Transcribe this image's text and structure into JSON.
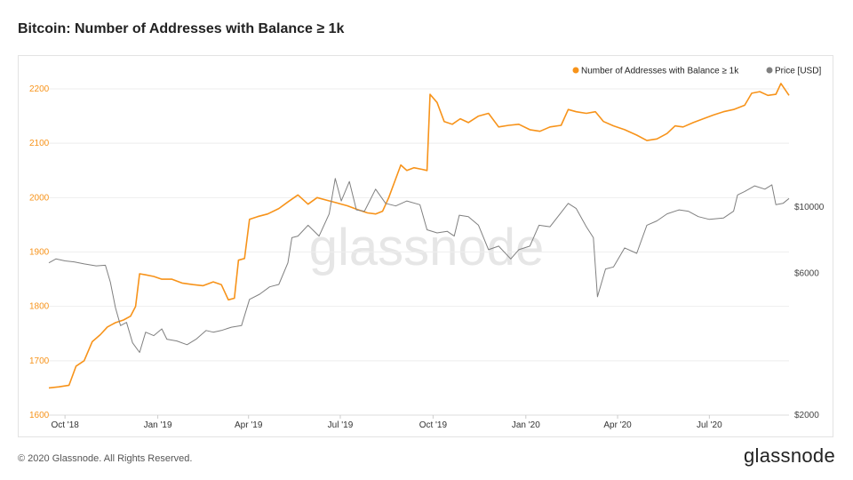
{
  "page": {
    "title": "Bitcoin: Number of Addresses with Balance ≥ 1k",
    "footer": "© 2020 Glassnode. All Rights Reserved.",
    "brand": "glassnode",
    "watermark": "glassnode"
  },
  "chart_data": {
    "type": "line",
    "colors": {
      "addresses": "#f7931a",
      "price": "#808080",
      "grid": "#eeeeee"
    },
    "x_ticks": [
      "Oct '18",
      "Jan '19",
      "Apr '19",
      "Jul '19",
      "Oct '19",
      "Jan '20",
      "Apr '20",
      "Jul '20"
    ],
    "x_range": [
      "2018-09-15",
      "2020-09-18"
    ],
    "y_left": {
      "ticks": [
        "1600",
        "1700",
        "1800",
        "1900",
        "2000",
        "2100",
        "2200"
      ],
      "range": [
        1600,
        2200
      ]
    },
    "y_right": {
      "ticks": [
        "$2000",
        "$6000",
        "$10000"
      ],
      "values": [
        2000,
        6000,
        10000
      ],
      "scale": "log",
      "range": [
        2000,
        25000
      ]
    },
    "legend": {
      "placement": "top-right"
    },
    "series": [
      {
        "name": "Number of Addresses with Balance ≥ 1k",
        "axis": "left",
        "points": [
          [
            "2018-09-15",
            1650
          ],
          [
            "2018-09-25",
            1652
          ],
          [
            "2018-10-05",
            1655
          ],
          [
            "2018-10-12",
            1690
          ],
          [
            "2018-10-20",
            1700
          ],
          [
            "2018-10-28",
            1735
          ],
          [
            "2018-11-05",
            1748
          ],
          [
            "2018-11-12",
            1762
          ],
          [
            "2018-11-20",
            1770
          ],
          [
            "2018-11-28",
            1775
          ],
          [
            "2018-12-05",
            1782
          ],
          [
            "2018-12-10",
            1800
          ],
          [
            "2018-12-14",
            1860
          ],
          [
            "2018-12-20",
            1858
          ],
          [
            "2018-12-28",
            1855
          ],
          [
            "2019-01-05",
            1850
          ],
          [
            "2019-01-15",
            1850
          ],
          [
            "2019-01-25",
            1843
          ],
          [
            "2019-02-05",
            1840
          ],
          [
            "2019-02-15",
            1838
          ],
          [
            "2019-02-25",
            1845
          ],
          [
            "2019-03-05",
            1840
          ],
          [
            "2019-03-12",
            1812
          ],
          [
            "2019-03-18",
            1815
          ],
          [
            "2019-03-22",
            1885
          ],
          [
            "2019-03-28",
            1888
          ],
          [
            "2019-04-02",
            1960
          ],
          [
            "2019-04-10",
            1965
          ],
          [
            "2019-04-20",
            1970
          ],
          [
            "2019-05-01",
            1980
          ],
          [
            "2019-05-10",
            1992
          ],
          [
            "2019-05-20",
            2005
          ],
          [
            "2019-05-30",
            1988
          ],
          [
            "2019-06-08",
            2000
          ],
          [
            "2019-06-18",
            1995
          ],
          [
            "2019-06-28",
            1990
          ],
          [
            "2019-07-08",
            1985
          ],
          [
            "2019-07-18",
            1978
          ],
          [
            "2019-07-28",
            1972
          ],
          [
            "2019-08-05",
            1970
          ],
          [
            "2019-08-12",
            1975
          ],
          [
            "2019-08-18",
            2000
          ],
          [
            "2019-08-24",
            2030
          ],
          [
            "2019-08-30",
            2060
          ],
          [
            "2019-09-05",
            2050
          ],
          [
            "2019-09-12",
            2055
          ],
          [
            "2019-09-20",
            2052
          ],
          [
            "2019-09-25",
            2050
          ],
          [
            "2019-09-28",
            2190
          ],
          [
            "2019-10-05",
            2175
          ],
          [
            "2019-10-12",
            2140
          ],
          [
            "2019-10-20",
            2135
          ],
          [
            "2019-10-28",
            2145
          ],
          [
            "2019-11-05",
            2138
          ],
          [
            "2019-11-15",
            2150
          ],
          [
            "2019-11-25",
            2155
          ],
          [
            "2019-12-05",
            2130
          ],
          [
            "2019-12-15",
            2133
          ],
          [
            "2019-12-25",
            2135
          ],
          [
            "2020-01-05",
            2125
          ],
          [
            "2020-01-15",
            2122
          ],
          [
            "2020-01-25",
            2130
          ],
          [
            "2020-02-05",
            2133
          ],
          [
            "2020-02-12",
            2162
          ],
          [
            "2020-02-20",
            2158
          ],
          [
            "2020-03-01",
            2155
          ],
          [
            "2020-03-10",
            2158
          ],
          [
            "2020-03-18",
            2140
          ],
          [
            "2020-03-28",
            2132
          ],
          [
            "2020-04-08",
            2125
          ],
          [
            "2020-04-20",
            2115
          ],
          [
            "2020-04-30",
            2105
          ],
          [
            "2020-05-10",
            2108
          ],
          [
            "2020-05-20",
            2118
          ],
          [
            "2020-05-28",
            2132
          ],
          [
            "2020-06-05",
            2130
          ],
          [
            "2020-06-15",
            2138
          ],
          [
            "2020-06-25",
            2145
          ],
          [
            "2020-07-05",
            2152
          ],
          [
            "2020-07-15",
            2158
          ],
          [
            "2020-07-25",
            2162
          ],
          [
            "2020-08-05",
            2170
          ],
          [
            "2020-08-12",
            2192
          ],
          [
            "2020-08-20",
            2195
          ],
          [
            "2020-08-28",
            2188
          ],
          [
            "2020-09-05",
            2190
          ],
          [
            "2020-09-10",
            2210
          ],
          [
            "2020-09-18",
            2188
          ]
        ]
      },
      {
        "name": "Price [USD]",
        "axis": "right",
        "points": [
          [
            "2018-09-15",
            6500
          ],
          [
            "2018-09-22",
            6700
          ],
          [
            "2018-10-01",
            6600
          ],
          [
            "2018-10-10",
            6550
          ],
          [
            "2018-10-20",
            6450
          ],
          [
            "2018-11-01",
            6350
          ],
          [
            "2018-11-10",
            6380
          ],
          [
            "2018-11-15",
            5600
          ],
          [
            "2018-11-20",
            4600
          ],
          [
            "2018-11-25",
            4000
          ],
          [
            "2018-12-01",
            4100
          ],
          [
            "2018-12-07",
            3500
          ],
          [
            "2018-12-14",
            3250
          ],
          [
            "2018-12-20",
            3800
          ],
          [
            "2018-12-28",
            3700
          ],
          [
            "2019-01-05",
            3900
          ],
          [
            "2019-01-10",
            3600
          ],
          [
            "2019-01-20",
            3550
          ],
          [
            "2019-01-30",
            3450
          ],
          [
            "2019-02-08",
            3600
          ],
          [
            "2019-02-18",
            3850
          ],
          [
            "2019-02-25",
            3800
          ],
          [
            "2019-03-05",
            3850
          ],
          [
            "2019-03-15",
            3950
          ],
          [
            "2019-03-25",
            4000
          ],
          [
            "2019-04-02",
            4900
          ],
          [
            "2019-04-12",
            5100
          ],
          [
            "2019-04-22",
            5400
          ],
          [
            "2019-05-01",
            5500
          ],
          [
            "2019-05-10",
            6500
          ],
          [
            "2019-05-14",
            7900
          ],
          [
            "2019-05-20",
            8000
          ],
          [
            "2019-05-30",
            8700
          ],
          [
            "2019-06-10",
            8000
          ],
          [
            "2019-06-20",
            9500
          ],
          [
            "2019-06-26",
            12500
          ],
          [
            "2019-07-02",
            10500
          ],
          [
            "2019-07-10",
            12200
          ],
          [
            "2019-07-17",
            9800
          ],
          [
            "2019-07-25",
            9700
          ],
          [
            "2019-08-05",
            11500
          ],
          [
            "2019-08-15",
            10300
          ],
          [
            "2019-08-25",
            10100
          ],
          [
            "2019-09-05",
            10500
          ],
          [
            "2019-09-18",
            10200
          ],
          [
            "2019-09-25",
            8400
          ],
          [
            "2019-10-05",
            8200
          ],
          [
            "2019-10-15",
            8300
          ],
          [
            "2019-10-22",
            8000
          ],
          [
            "2019-10-27",
            9400
          ],
          [
            "2019-11-05",
            9300
          ],
          [
            "2019-11-15",
            8700
          ],
          [
            "2019-11-25",
            7200
          ],
          [
            "2019-12-05",
            7400
          ],
          [
            "2019-12-17",
            6700
          ],
          [
            "2019-12-25",
            7200
          ],
          [
            "2020-01-05",
            7400
          ],
          [
            "2020-01-14",
            8700
          ],
          [
            "2020-01-25",
            8600
          ],
          [
            "2020-02-05",
            9600
          ],
          [
            "2020-02-12",
            10300
          ],
          [
            "2020-02-20",
            9900
          ],
          [
            "2020-03-01",
            8600
          ],
          [
            "2020-03-08",
            7900
          ],
          [
            "2020-03-12",
            5000
          ],
          [
            "2020-03-20",
            6200
          ],
          [
            "2020-03-28",
            6300
          ],
          [
            "2020-04-08",
            7300
          ],
          [
            "2020-04-20",
            7000
          ],
          [
            "2020-04-30",
            8700
          ],
          [
            "2020-05-10",
            9000
          ],
          [
            "2020-05-20",
            9500
          ],
          [
            "2020-06-01",
            9800
          ],
          [
            "2020-06-10",
            9700
          ],
          [
            "2020-06-20",
            9300
          ],
          [
            "2020-07-01",
            9100
          ],
          [
            "2020-07-15",
            9200
          ],
          [
            "2020-07-25",
            9700
          ],
          [
            "2020-07-29",
            11000
          ],
          [
            "2020-08-05",
            11300
          ],
          [
            "2020-08-15",
            11800
          ],
          [
            "2020-08-25",
            11500
          ],
          [
            "2020-09-01",
            11900
          ],
          [
            "2020-09-05",
            10200
          ],
          [
            "2020-09-12",
            10300
          ],
          [
            "2020-09-18",
            10700
          ]
        ]
      }
    ]
  }
}
